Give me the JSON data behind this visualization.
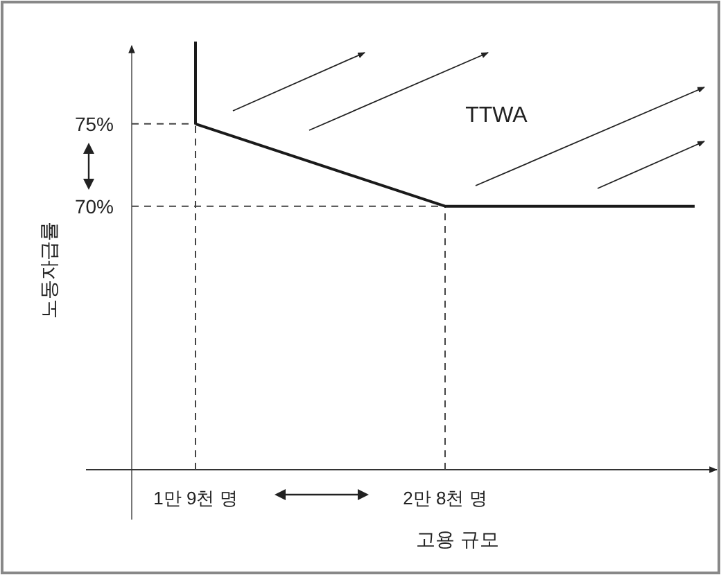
{
  "chart_data": {
    "type": "line",
    "xlabel": "고용 규모",
    "ylabel": "노동자급률",
    "annotations": [
      "TTWA"
    ],
    "categories": [
      "1만 9천 명",
      "2만 8천 명",
      null
    ],
    "series": [
      {
        "color": "#1a1a1a",
        "values": [
          75,
          70,
          70
        ]
      },
      {
        "color": "#1a1a1a",
        "x": [
          "1만 9천 명",
          "1만 9천 명"
        ],
        "values": [
          80,
          75
        ]
      }
    ],
    "ylim": [
      54,
      80
    ],
    "yticks": [
      {
        "value": 75,
        "label": "75%"
      },
      {
        "value": 70,
        "label": "70%"
      }
    ],
    "ref_lines": [
      {
        "axis": "y",
        "value": 75,
        "line_style": "dashed"
      },
      {
        "axis": "y",
        "value": 70,
        "line_style": "dashed"
      },
      {
        "axis": "x",
        "value": "1만 9천 명",
        "line_style": "dashed"
      },
      {
        "axis": "x",
        "value": "2만 8천 명",
        "line_style": "dashed"
      }
    ]
  }
}
